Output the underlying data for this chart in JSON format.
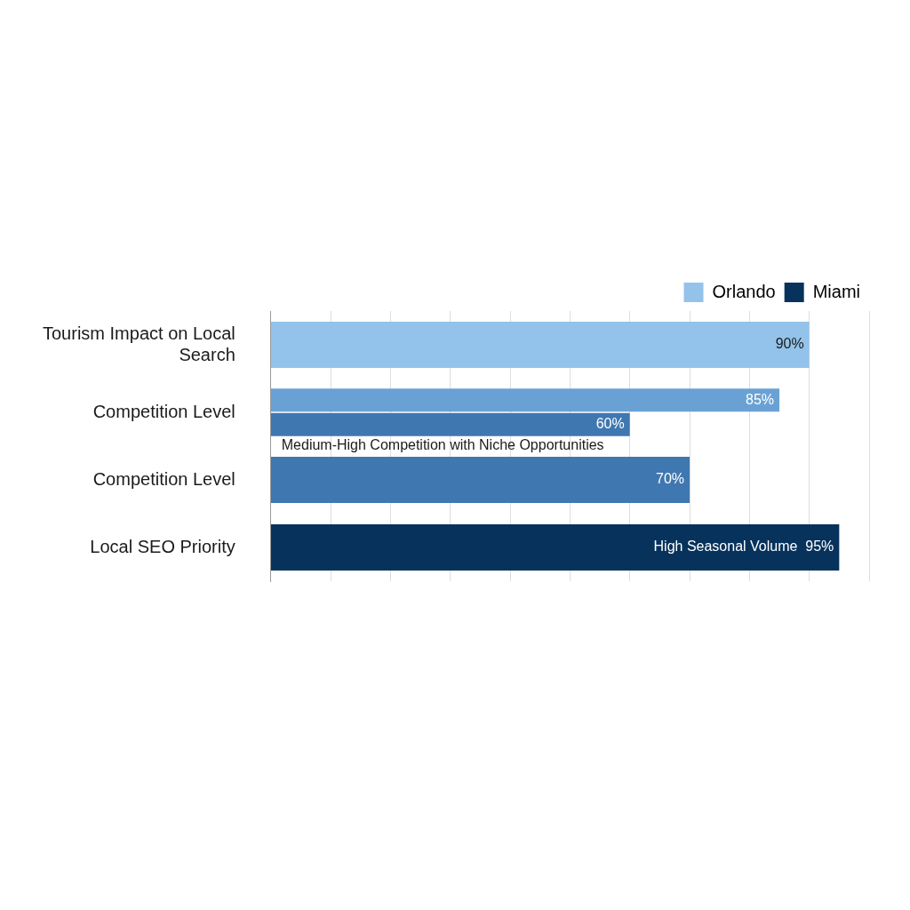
{
  "chart_data": {
    "type": "bar",
    "orientation": "horizontal",
    "categories": [
      "Tourism Impact on Local Search",
      "Competition Level",
      "Competition Level",
      "Local SEO Priority"
    ],
    "series": [
      {
        "name": "Orlando",
        "color": "#93c3ea",
        "colors": [
          "#93c3ea",
          "#6aa1d4",
          "#3f77b0",
          null
        ],
        "values": [
          90,
          85,
          70,
          null
        ],
        "value_labels": [
          "90%",
          "85%",
          "70%",
          null
        ]
      },
      {
        "name": "Miami",
        "color": "#06325c",
        "colors": [
          null,
          "#3f77b0",
          null,
          "#06325c"
        ],
        "values": [
          null,
          60,
          null,
          95
        ],
        "value_labels": [
          null,
          "60%",
          null,
          "High Seasonal Volume  95%"
        ]
      }
    ],
    "annotations": [
      "Medium-High Competition with Niche Opportunities"
    ],
    "xlim": [
      0,
      100
    ],
    "xticks": [
      {
        "value": 10,
        "label": null
      },
      {
        "value": 20,
        "label": null
      },
      {
        "value": 30,
        "label": null
      },
      {
        "value": 40,
        "label": null
      },
      {
        "value": 50,
        "label": null
      },
      {
        "value": 60,
        "label": null
      },
      {
        "value": 70,
        "label": null
      },
      {
        "value": 80,
        "label": null
      },
      {
        "value": 90,
        "label": null
      },
      {
        "value": 100,
        "label": null
      }
    ],
    "tick_labels": "y",
    "grid": "x",
    "legend": "top right"
  }
}
